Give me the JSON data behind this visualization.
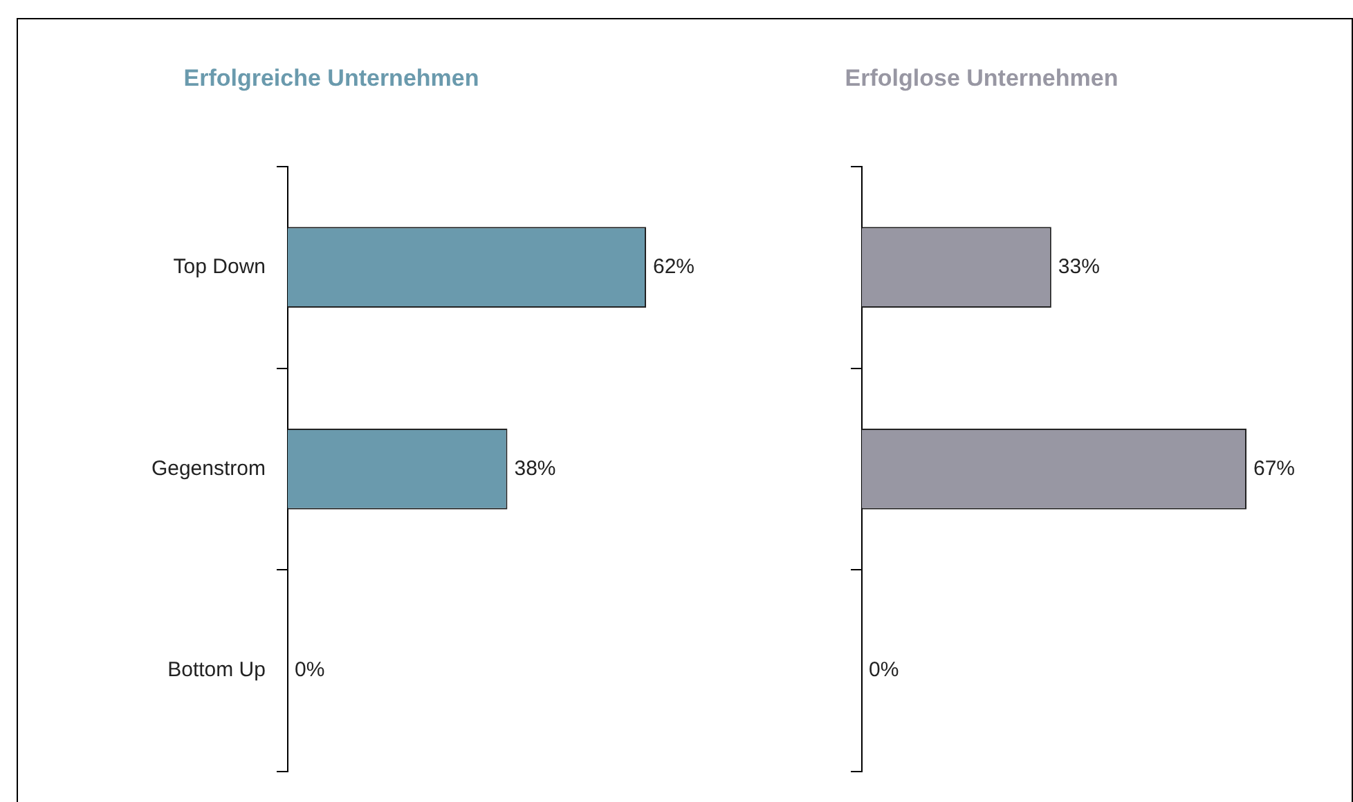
{
  "chart_data": [
    {
      "type": "bar",
      "orientation": "horizontal",
      "title": "Erfolgreiche Unternehmen",
      "categories": [
        "Top Down",
        "Gegenstrom",
        "Bottom Up"
      ],
      "values": [
        62,
        38,
        0
      ],
      "value_labels": [
        "62%",
        "38%",
        "0%"
      ],
      "color": "#6a9aad",
      "tick_labels": "y",
      "grid": false,
      "legend": false
    },
    {
      "type": "bar",
      "orientation": "horizontal",
      "title": "Erfolglose Unternehmen",
      "categories": [
        null,
        null,
        null
      ],
      "values": [
        33,
        67,
        0
      ],
      "value_labels": [
        "33%",
        "67%",
        "0%"
      ],
      "color": "#9897a3",
      "tick_labels": false,
      "grid": false,
      "legend": false
    }
  ]
}
